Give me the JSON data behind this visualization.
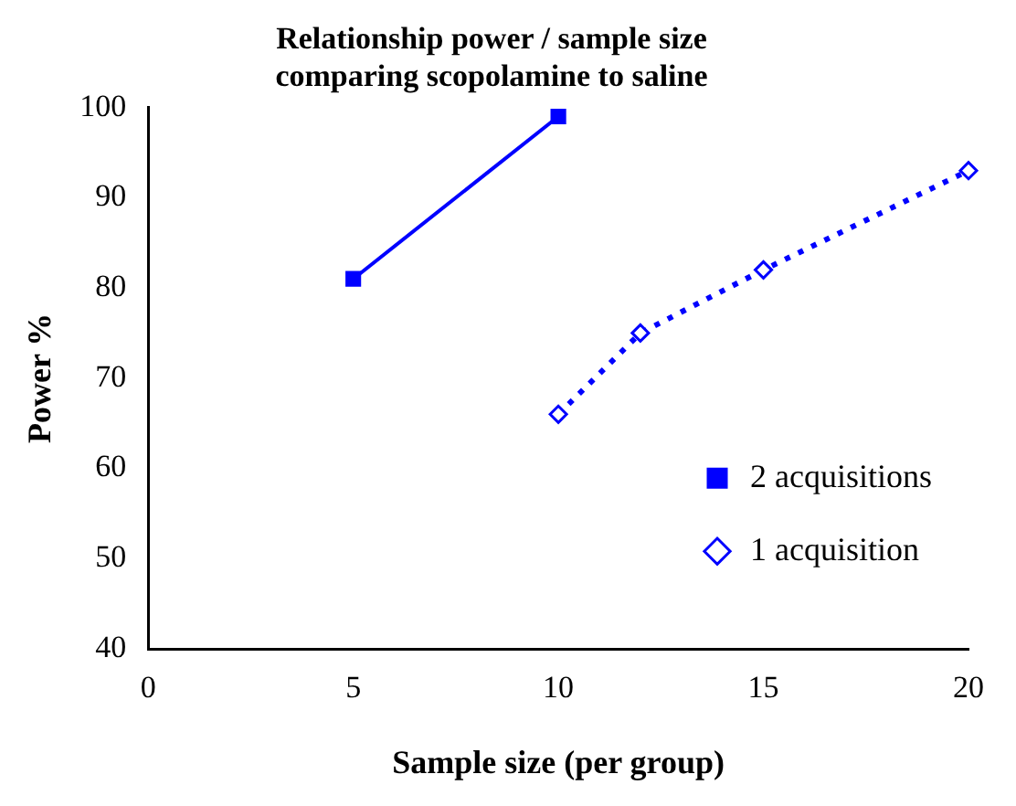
{
  "chart_data": {
    "type": "line",
    "title": "Relationship power / sample size\ncomparing scopolamine to saline",
    "xlabel": "Sample size (per group)",
    "ylabel": "Power %",
    "series": [
      {
        "name": "2 acquisitions",
        "color": "#0000ff",
        "x": [
          5,
          10
        ],
        "values": [
          81,
          99
        ],
        "marker": "square",
        "line_style": "solid"
      },
      {
        "name": "1 acquisition",
        "color": "#0000ff",
        "x": [
          10,
          12,
          15,
          20
        ],
        "values": [
          66,
          75,
          82,
          93
        ],
        "marker": "diamond",
        "line_style": "dotted"
      }
    ],
    "xlim": [
      0,
      20
    ],
    "xticks": [
      0,
      5,
      10,
      15,
      20
    ],
    "ylim": [
      40,
      100
    ],
    "yticks": [
      40,
      50,
      60,
      70,
      80,
      90,
      100
    ],
    "grid": false,
    "legend": "right"
  }
}
